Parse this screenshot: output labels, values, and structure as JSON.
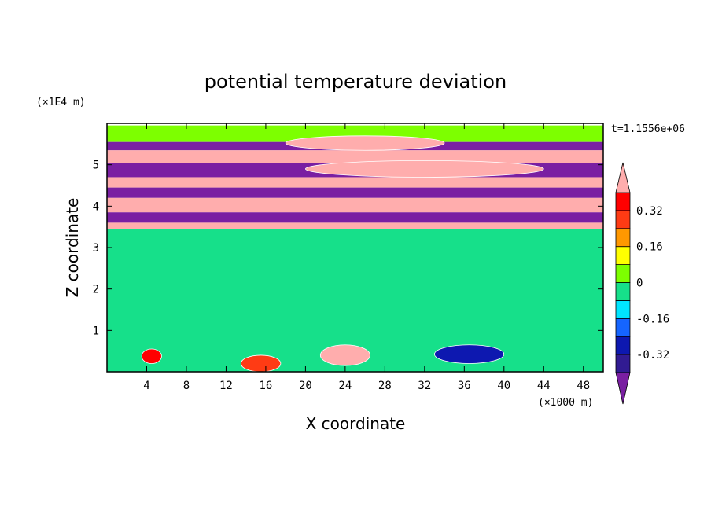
{
  "chart_data": {
    "type": "heatmap",
    "title": "potential temperature deviation",
    "xlabel": "X coordinate",
    "ylabel": "Z coordinate",
    "x_unit": "(×1000 m)",
    "y_unit": "(×1E4 m)",
    "time_label": "t=1.1556e+06",
    "xlim": [
      0,
      50
    ],
    "ylim": [
      0,
      6
    ],
    "x_ticks": [
      4,
      8,
      12,
      16,
      20,
      24,
      28,
      32,
      36,
      40,
      44,
      48
    ],
    "y_ticks": [
      1,
      2,
      3,
      4,
      5
    ],
    "colorbar": {
      "levels": [
        -0.4,
        -0.32,
        -0.24,
        -0.16,
        -0.08,
        0,
        0.08,
        0.16,
        0.24,
        0.32,
        0.4
      ],
      "tick_labels": [
        "-0.32",
        "-0.16",
        "0",
        "0.16",
        "0.32"
      ],
      "tick_values": [
        -0.32,
        -0.16,
        0,
        0.16,
        0.32
      ],
      "colors": [
        "#7a1fa2",
        "#311b92",
        "#0d18b0",
        "#1565ff",
        "#00e5ff",
        "#16e08a",
        "#7dff00",
        "#ffff00",
        "#ff9800",
        "#ff3b14",
        "#ff0000",
        "#ffadad"
      ],
      "extend": "both"
    },
    "bands": [
      {
        "z": [
          5.55,
          5.95
        ],
        "value": 0.02
      },
      {
        "z": [
          5.35,
          5.55
        ],
        "value": -0.45
      },
      {
        "z": [
          5.05,
          5.35
        ],
        "value": 0.45
      },
      {
        "z": [
          4.7,
          5.05
        ],
        "value": -0.45
      },
      {
        "z": [
          4.45,
          4.7
        ],
        "value": 0.45
      },
      {
        "z": [
          4.2,
          4.45
        ],
        "value": -0.45
      },
      {
        "z": [
          3.85,
          4.2
        ],
        "value": 0.45
      },
      {
        "z": [
          3.6,
          3.85
        ],
        "value": -0.45
      },
      {
        "z": [
          3.45,
          3.6
        ],
        "value": 0.45
      },
      {
        "z": [
          0.7,
          3.45
        ],
        "value": 0.0
      },
      {
        "z": [
          0.0,
          0.7
        ],
        "value": -0.05
      }
    ],
    "features": [
      {
        "name": "upper warm lens",
        "x": [
          20,
          44
        ],
        "z": [
          4.7,
          5.1
        ],
        "value": 0.45
      },
      {
        "name": "warm cap",
        "x": [
          18,
          34
        ],
        "z": [
          5.35,
          5.7
        ],
        "value": 0.45
      },
      {
        "name": "lower warm patch 1",
        "x": [
          3.5,
          5.5
        ],
        "z": [
          0.2,
          0.55
        ],
        "value": 0.38
      },
      {
        "name": "lower warm patch 2",
        "x": [
          13.5,
          17.5
        ],
        "z": [
          0.0,
          0.4
        ],
        "value": 0.3
      },
      {
        "name": "lower warm patch 3",
        "x": [
          21.5,
          26.5
        ],
        "z": [
          0.15,
          0.65
        ],
        "value": 0.42
      },
      {
        "name": "lower cold patch",
        "x": [
          33,
          40
        ],
        "z": [
          0.2,
          0.65
        ],
        "value": -0.3
      }
    ]
  }
}
